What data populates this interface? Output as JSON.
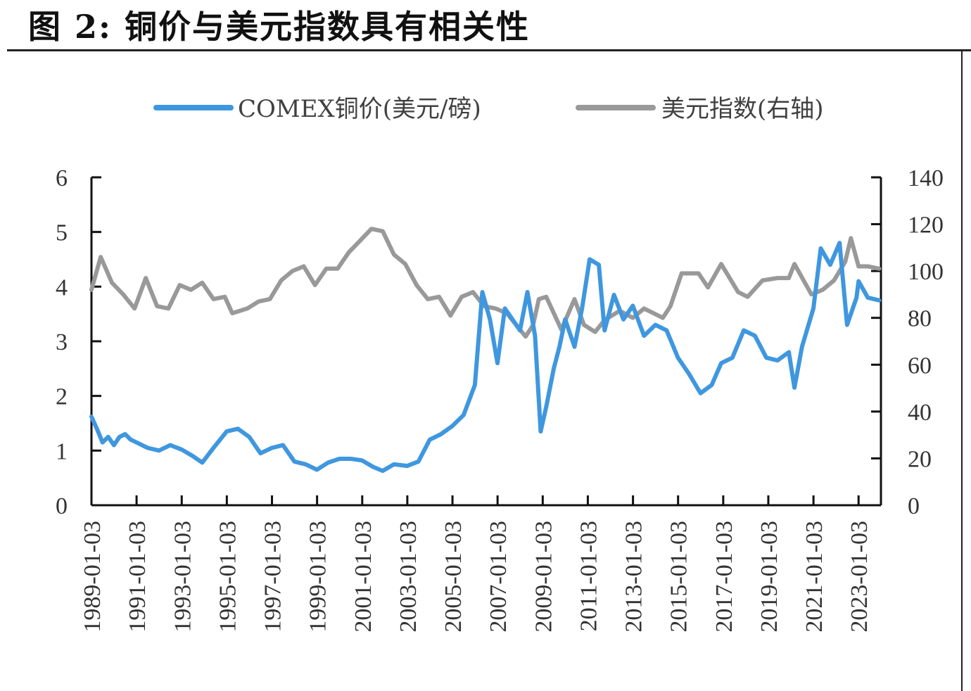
{
  "figure_title": "图 2:  铜价与美元指数具有相关性",
  "colors": {
    "copper": "#3f97df",
    "dxy": "#999999",
    "axis": "#111111"
  },
  "chart_data": {
    "type": "line",
    "title": "",
    "legend": {
      "placement": "top",
      "items": [
        {
          "name": "COMEX铜价(美元/磅)",
          "color": "#3f97df"
        },
        {
          "name": "美元指数(右轴)",
          "color": "#999999"
        }
      ]
    },
    "x_axis": {
      "type": "date",
      "range": [
        "1989-01-03",
        "2023-12-31"
      ],
      "tick_labels": [
        "1989-01-03",
        "1991-01-03",
        "1993-01-03",
        "1995-01-03",
        "1997-01-03",
        "1999-01-03",
        "2001-01-03",
        "2003-01-03",
        "2005-01-03",
        "2007-01-03",
        "2009-01-03",
        "2011-01-03",
        "2013-01-03",
        "2015-01-03",
        "2017-01-03",
        "2019-01-03",
        "2021-01-03",
        "2023-01-03"
      ]
    },
    "y_left": {
      "range": [
        0,
        6
      ],
      "ticks": [
        "0",
        "1",
        "2",
        "3",
        "4",
        "5",
        "6"
      ]
    },
    "y_right": {
      "range": [
        0,
        140
      ],
      "ticks": [
        "0",
        "20",
        "40",
        "60",
        "80",
        "100",
        "120",
        "140"
      ]
    },
    "series": [
      {
        "name": "COMEX铜价(美元/磅)",
        "axis": "left",
        "points": [
          [
            "1989-01-03",
            1.62
          ],
          [
            "1989-04-01",
            1.4
          ],
          [
            "1989-07-01",
            1.15
          ],
          [
            "1989-10-01",
            1.25
          ],
          [
            "1990-01-01",
            1.1
          ],
          [
            "1990-04-01",
            1.25
          ],
          [
            "1990-07-01",
            1.3
          ],
          [
            "1990-10-01",
            1.2
          ],
          [
            "1991-01-01",
            1.15
          ],
          [
            "1991-07-01",
            1.05
          ],
          [
            "1992-01-01",
            1.0
          ],
          [
            "1992-07-01",
            1.1
          ],
          [
            "1993-01-01",
            1.02
          ],
          [
            "1993-07-01",
            0.9
          ],
          [
            "1993-12-01",
            0.78
          ],
          [
            "1994-06-01",
            1.05
          ],
          [
            "1995-01-01",
            1.35
          ],
          [
            "1995-07-01",
            1.4
          ],
          [
            "1996-01-01",
            1.25
          ],
          [
            "1996-07-01",
            0.95
          ],
          [
            "1997-01-01",
            1.05
          ],
          [
            "1997-07-01",
            1.1
          ],
          [
            "1998-01-01",
            0.8
          ],
          [
            "1998-07-01",
            0.75
          ],
          [
            "1999-01-01",
            0.65
          ],
          [
            "1999-07-01",
            0.78
          ],
          [
            "2000-01-01",
            0.85
          ],
          [
            "2000-07-01",
            0.85
          ],
          [
            "2001-01-01",
            0.82
          ],
          [
            "2001-07-01",
            0.7
          ],
          [
            "2001-12-01",
            0.63
          ],
          [
            "2002-06-01",
            0.75
          ],
          [
            "2003-01-01",
            0.72
          ],
          [
            "2003-07-01",
            0.8
          ],
          [
            "2004-01-01",
            1.2
          ],
          [
            "2004-07-01",
            1.3
          ],
          [
            "2005-01-01",
            1.45
          ],
          [
            "2005-07-01",
            1.65
          ],
          [
            "2006-01-01",
            2.2
          ],
          [
            "2006-05-01",
            3.9
          ],
          [
            "2006-09-01",
            3.4
          ],
          [
            "2007-01-01",
            2.6
          ],
          [
            "2007-05-01",
            3.6
          ],
          [
            "2007-09-01",
            3.4
          ],
          [
            "2008-01-01",
            3.2
          ],
          [
            "2008-05-01",
            3.9
          ],
          [
            "2008-09-01",
            3.1
          ],
          [
            "2008-12-01",
            1.35
          ],
          [
            "2009-03-01",
            1.8
          ],
          [
            "2009-07-01",
            2.5
          ],
          [
            "2009-10-01",
            2.9
          ],
          [
            "2010-01-01",
            3.4
          ],
          [
            "2010-06-01",
            2.9
          ],
          [
            "2010-10-01",
            3.6
          ],
          [
            "2011-02-01",
            4.5
          ],
          [
            "2011-07-01",
            4.4
          ],
          [
            "2011-10-01",
            3.2
          ],
          [
            "2012-03-01",
            3.85
          ],
          [
            "2012-08-01",
            3.4
          ],
          [
            "2013-01-01",
            3.65
          ],
          [
            "2013-07-01",
            3.1
          ],
          [
            "2014-01-01",
            3.3
          ],
          [
            "2014-07-01",
            3.2
          ],
          [
            "2015-01-01",
            2.7
          ],
          [
            "2015-07-01",
            2.4
          ],
          [
            "2016-01-01",
            2.05
          ],
          [
            "2016-07-01",
            2.2
          ],
          [
            "2016-12-01",
            2.6
          ],
          [
            "2017-06-01",
            2.7
          ],
          [
            "2017-12-01",
            3.2
          ],
          [
            "2018-06-01",
            3.1
          ],
          [
            "2018-12-01",
            2.7
          ],
          [
            "2019-06-01",
            2.65
          ],
          [
            "2019-12-01",
            2.8
          ],
          [
            "2020-03-01",
            2.15
          ],
          [
            "2020-07-01",
            2.9
          ],
          [
            "2021-01-01",
            3.6
          ],
          [
            "2021-05-01",
            4.7
          ],
          [
            "2021-10-01",
            4.4
          ],
          [
            "2022-03-01",
            4.8
          ],
          [
            "2022-07-01",
            3.3
          ],
          [
            "2022-12-01",
            3.8
          ],
          [
            "2023-01-03",
            4.1
          ],
          [
            "2023-06-01",
            3.8
          ],
          [
            "2023-12-01",
            3.75
          ]
        ]
      },
      {
        "name": "美元指数(右轴)",
        "axis": "right",
        "points": [
          [
            "1989-01-03",
            92
          ],
          [
            "1989-06-01",
            106
          ],
          [
            "1989-12-01",
            95
          ],
          [
            "1990-06-01",
            90
          ],
          [
            "1990-12-01",
            84
          ],
          [
            "1991-06-01",
            97
          ],
          [
            "1991-12-01",
            85
          ],
          [
            "1992-06-01",
            84
          ],
          [
            "1992-12-01",
            94
          ],
          [
            "1993-06-01",
            92
          ],
          [
            "1993-12-01",
            95
          ],
          [
            "1994-06-01",
            88
          ],
          [
            "1994-12-01",
            89
          ],
          [
            "1995-04-01",
            82
          ],
          [
            "1995-12-01",
            84
          ],
          [
            "1996-06-01",
            87
          ],
          [
            "1996-12-01",
            88
          ],
          [
            "1997-06-01",
            96
          ],
          [
            "1997-12-01",
            100
          ],
          [
            "1998-06-01",
            102
          ],
          [
            "1998-12-01",
            94
          ],
          [
            "1999-06-01",
            101
          ],
          [
            "1999-12-01",
            101
          ],
          [
            "2000-06-01",
            108
          ],
          [
            "2000-12-01",
            113
          ],
          [
            "2001-06-01",
            118
          ],
          [
            "2001-12-01",
            117
          ],
          [
            "2002-06-01",
            107
          ],
          [
            "2002-12-01",
            103
          ],
          [
            "2003-06-01",
            94
          ],
          [
            "2003-12-01",
            88
          ],
          [
            "2004-06-01",
            89
          ],
          [
            "2004-12-01",
            81
          ],
          [
            "2005-06-01",
            89
          ],
          [
            "2005-12-01",
            91
          ],
          [
            "2006-06-01",
            85
          ],
          [
            "2006-12-01",
            84
          ],
          [
            "2007-06-01",
            82
          ],
          [
            "2007-12-01",
            76
          ],
          [
            "2008-04-01",
            72
          ],
          [
            "2008-08-01",
            77
          ],
          [
            "2008-11-01",
            88
          ],
          [
            "2009-03-01",
            89
          ],
          [
            "2009-11-01",
            75
          ],
          [
            "2010-06-01",
            88
          ],
          [
            "2010-11-01",
            77
          ],
          [
            "2011-05-01",
            74
          ],
          [
            "2011-10-01",
            79
          ],
          [
            "2012-06-01",
            83
          ],
          [
            "2013-01-01",
            80
          ],
          [
            "2013-07-01",
            84
          ],
          [
            "2014-05-01",
            80
          ],
          [
            "2014-09-01",
            85
          ],
          [
            "2015-03-01",
            99
          ],
          [
            "2015-12-01",
            99
          ],
          [
            "2016-05-01",
            93
          ],
          [
            "2016-12-01",
            103
          ],
          [
            "2017-09-01",
            91
          ],
          [
            "2018-02-01",
            89
          ],
          [
            "2018-10-01",
            96
          ],
          [
            "2019-06-01",
            97
          ],
          [
            "2019-12-01",
            97
          ],
          [
            "2020-03-01",
            103
          ],
          [
            "2020-12-01",
            90
          ],
          [
            "2021-06-01",
            92
          ],
          [
            "2021-12-01",
            96
          ],
          [
            "2022-06-01",
            104
          ],
          [
            "2022-09-01",
            114
          ],
          [
            "2023-01-03",
            102
          ],
          [
            "2023-06-01",
            102
          ],
          [
            "2023-12-01",
            101
          ]
        ]
      }
    ]
  }
}
